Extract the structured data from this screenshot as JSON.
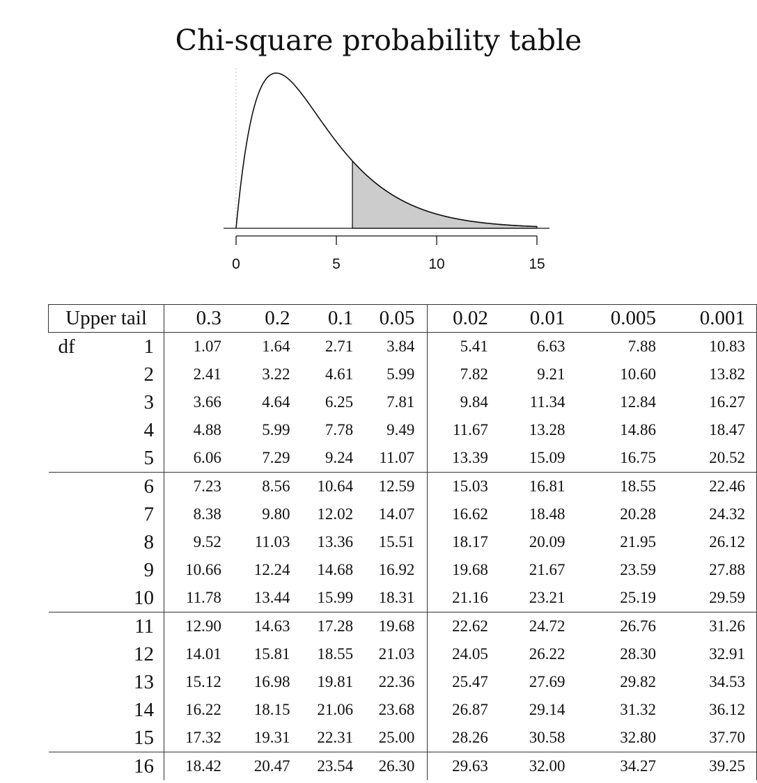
{
  "title": "Chi-square probability table",
  "axis": {
    "tick_labels": [
      "0",
      "5",
      "10",
      "15"
    ],
    "range": [
      0,
      15
    ],
    "df": 2,
    "shaded_from": 5.8
  },
  "table": {
    "header_label": "Upper tail",
    "df_label": "df",
    "upper_tail": [
      "0.3",
      "0.2",
      "0.1",
      "0.05",
      "0.02",
      "0.01",
      "0.005",
      "0.001"
    ],
    "rows": [
      {
        "df": "1",
        "values": [
          "1.07",
          "1.64",
          "2.71",
          "3.84",
          "5.41",
          "6.63",
          "7.88",
          "10.83"
        ]
      },
      {
        "df": "2",
        "values": [
          "2.41",
          "3.22",
          "4.61",
          "5.99",
          "7.82",
          "9.21",
          "10.60",
          "13.82"
        ]
      },
      {
        "df": "3",
        "values": [
          "3.66",
          "4.64",
          "6.25",
          "7.81",
          "9.84",
          "11.34",
          "12.84",
          "16.27"
        ]
      },
      {
        "df": "4",
        "values": [
          "4.88",
          "5.99",
          "7.78",
          "9.49",
          "11.67",
          "13.28",
          "14.86",
          "18.47"
        ]
      },
      {
        "df": "5",
        "values": [
          "6.06",
          "7.29",
          "9.24",
          "11.07",
          "13.39",
          "15.09",
          "16.75",
          "20.52"
        ]
      },
      {
        "df": "6",
        "values": [
          "7.23",
          "8.56",
          "10.64",
          "12.59",
          "15.03",
          "16.81",
          "18.55",
          "22.46"
        ]
      },
      {
        "df": "7",
        "values": [
          "8.38",
          "9.80",
          "12.02",
          "14.07",
          "16.62",
          "18.48",
          "20.28",
          "24.32"
        ]
      },
      {
        "df": "8",
        "values": [
          "9.52",
          "11.03",
          "13.36",
          "15.51",
          "18.17",
          "20.09",
          "21.95",
          "26.12"
        ]
      },
      {
        "df": "9",
        "values": [
          "10.66",
          "12.24",
          "14.68",
          "16.92",
          "19.68",
          "21.67",
          "23.59",
          "27.88"
        ]
      },
      {
        "df": "10",
        "values": [
          "11.78",
          "13.44",
          "15.99",
          "18.31",
          "21.16",
          "23.21",
          "25.19",
          "29.59"
        ]
      },
      {
        "df": "11",
        "values": [
          "12.90",
          "14.63",
          "17.28",
          "19.68",
          "22.62",
          "24.72",
          "26.76",
          "31.26"
        ]
      },
      {
        "df": "12",
        "values": [
          "14.01",
          "15.81",
          "18.55",
          "21.03",
          "24.05",
          "26.22",
          "28.30",
          "32.91"
        ]
      },
      {
        "df": "13",
        "values": [
          "15.12",
          "16.98",
          "19.81",
          "22.36",
          "25.47",
          "27.69",
          "29.82",
          "34.53"
        ]
      },
      {
        "df": "14",
        "values": [
          "16.22",
          "18.15",
          "21.06",
          "23.68",
          "26.87",
          "29.14",
          "31.32",
          "36.12"
        ]
      },
      {
        "df": "15",
        "values": [
          "17.32",
          "19.31",
          "22.31",
          "25.00",
          "28.26",
          "30.58",
          "32.80",
          "37.70"
        ]
      },
      {
        "df": "16",
        "values": [
          "18.42",
          "20.47",
          "23.54",
          "26.30",
          "29.63",
          "32.00",
          "34.27",
          "39.25"
        ]
      }
    ]
  }
}
